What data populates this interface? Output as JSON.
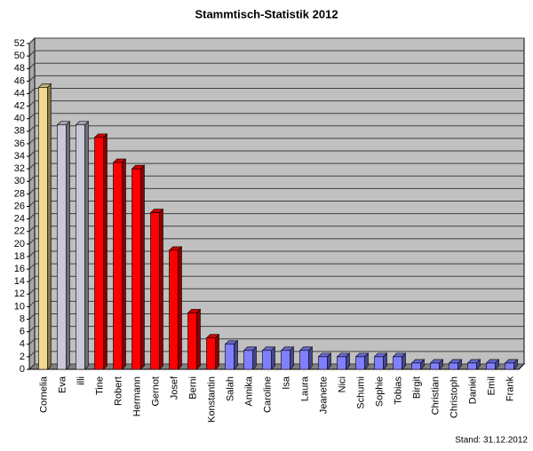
{
  "chart_data": {
    "type": "bar3d",
    "title": "Stammtisch-Statistik 2012",
    "footnote": "Stand: 31.12.2012",
    "categories": [
      "Cornelia",
      "Eva",
      "illi",
      "Tine",
      "Robert",
      "Hermann",
      "Gernot",
      "Josef",
      "Berni",
      "Konstantin",
      "Salah",
      "Annika",
      "Caroline",
      "Isa",
      "Laura",
      "Jeanette",
      "Nici",
      "Schumi",
      "Sophie",
      "Tobias",
      "Birgit",
      "Christian",
      "Christoph",
      "Daniel",
      "Emil",
      "Frank"
    ],
    "values": [
      45,
      39,
      39,
      37,
      33,
      32,
      25,
      19,
      9,
      5,
      4,
      3,
      3,
      3,
      3,
      2,
      2,
      2,
      2,
      2,
      1,
      1,
      1,
      1,
      1,
      1
    ],
    "colors": [
      "#f0d890",
      "#c8c8d8",
      "#c8c8d8",
      "#ff0000",
      "#ff0000",
      "#ff0000",
      "#ff0000",
      "#ff0000",
      "#ff0000",
      "#ff0000",
      "#8080ff",
      "#8080ff",
      "#8080ff",
      "#8080ff",
      "#8080ff",
      "#8080ff",
      "#8080ff",
      "#8080ff",
      "#8080ff",
      "#8080ff",
      "#8080ff",
      "#8080ff",
      "#8080ff",
      "#8080ff",
      "#8080ff",
      "#8080ff"
    ],
    "ylim": [
      0,
      52
    ],
    "yticks": [
      0,
      2,
      4,
      6,
      8,
      10,
      12,
      14,
      16,
      18,
      20,
      22,
      24,
      26,
      28,
      30,
      32,
      34,
      36,
      38,
      40,
      42,
      44,
      46,
      48,
      50,
      52
    ],
    "grid": true
  }
}
